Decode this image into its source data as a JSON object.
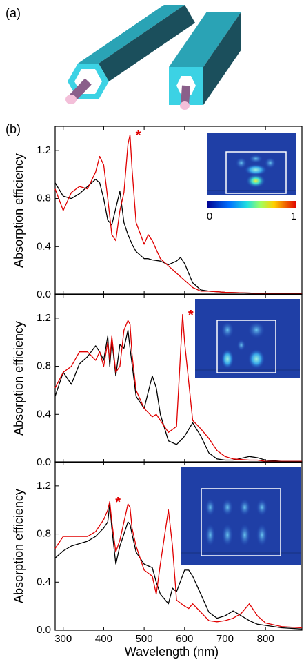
{
  "figure": {
    "panel_a_label": "(a)",
    "panel_b_label": "(b)"
  },
  "chart_data": [
    {
      "type": "line",
      "y_label": "Absorption efficiency",
      "annotation": "*",
      "colorbar_labels": [
        "0",
        "1"
      ],
      "x": [
        280,
        300,
        320,
        340,
        360,
        380,
        390,
        400,
        410,
        420,
        430,
        440,
        450,
        460,
        465,
        470,
        480,
        500,
        510,
        520,
        540,
        560,
        580,
        590,
        600,
        620,
        640,
        660,
        700,
        800,
        890
      ],
      "series": [
        {
          "color": "#000000",
          "values": [
            0.93,
            0.82,
            0.8,
            0.84,
            0.9,
            0.96,
            0.93,
            0.8,
            0.62,
            0.58,
            0.72,
            0.86,
            0.6,
            0.5,
            0.46,
            0.42,
            0.36,
            0.3,
            0.3,
            0.29,
            0.28,
            0.25,
            0.28,
            0.31,
            0.26,
            0.1,
            0.04,
            0.03,
            0.02,
            0.01,
            0.01
          ]
        },
        {
          "color": "#e00000",
          "values": [
            0.88,
            0.7,
            0.85,
            0.9,
            0.88,
            1.02,
            1.15,
            1.08,
            0.8,
            0.5,
            0.45,
            0.7,
            0.85,
            1.25,
            1.33,
            1.05,
            0.6,
            0.42,
            0.5,
            0.45,
            0.3,
            0.24,
            0.18,
            0.15,
            0.12,
            0.06,
            0.03,
            0.03,
            0.02,
            0.01,
            0.01
          ]
        }
      ],
      "xlim": [
        280,
        890
      ],
      "xticks": [
        300,
        400,
        500,
        600,
        700,
        800
      ],
      "ylim": [
        0,
        1.4
      ],
      "yticks": [
        {
          "value": 0,
          "label": "0.0"
        },
        0.4,
        0.8,
        1.2
      ]
    },
    {
      "type": "line",
      "y_label": "Absorption efficiency",
      "annotation": "*",
      "x": [
        280,
        300,
        320,
        340,
        360,
        380,
        390,
        400,
        410,
        415,
        420,
        430,
        440,
        450,
        460,
        465,
        470,
        480,
        500,
        520,
        530,
        540,
        560,
        580,
        595,
        600,
        620,
        640,
        660,
        680,
        700,
        720,
        760,
        780,
        800,
        840,
        890
      ],
      "series": [
        {
          "color": "#000000",
          "values": [
            0.55,
            0.75,
            0.65,
            0.82,
            0.88,
            0.97,
            0.92,
            0.85,
            1.05,
            0.8,
            1.02,
            0.72,
            0.98,
            0.95,
            1.1,
            0.95,
            0.82,
            0.55,
            0.45,
            0.72,
            0.62,
            0.4,
            0.18,
            0.15,
            0.2,
            0.22,
            0.33,
            0.22,
            0.08,
            0.03,
            0.02,
            0.02,
            0.05,
            0.04,
            0.02,
            0.01,
            0.01
          ]
        },
        {
          "color": "#e00000",
          "values": [
            0.62,
            0.75,
            0.8,
            0.92,
            0.92,
            0.85,
            0.92,
            0.8,
            1.0,
            0.85,
            1.05,
            0.75,
            0.8,
            1.1,
            1.18,
            1.15,
            0.9,
            0.6,
            0.45,
            0.38,
            0.4,
            0.35,
            0.25,
            0.3,
            1.23,
            1.0,
            0.35,
            0.28,
            0.2,
            0.1,
            0.05,
            0.03,
            0.02,
            0.02,
            0.01,
            0.01,
            0.01
          ]
        }
      ],
      "xlim": [
        280,
        890
      ],
      "xticks": [
        300,
        400,
        500,
        600,
        700,
        800
      ],
      "ylim": [
        0,
        1.4
      ],
      "yticks": [
        {
          "value": 0,
          "label": "0.0"
        },
        0.4,
        0.8,
        1.2
      ]
    },
    {
      "type": "line",
      "y_label": "Absorption efficiency",
      "annotation": "*",
      "x_label": "Wavelength (nm)",
      "x": [
        280,
        300,
        320,
        340,
        360,
        380,
        400,
        410,
        415,
        420,
        430,
        440,
        450,
        460,
        465,
        470,
        480,
        500,
        520,
        530,
        540,
        560,
        570,
        580,
        600,
        610,
        620,
        640,
        660,
        680,
        700,
        720,
        740,
        760,
        780,
        800,
        840,
        890
      ],
      "series": [
        {
          "color": "#000000",
          "values": [
            0.6,
            0.66,
            0.7,
            0.72,
            0.74,
            0.78,
            0.85,
            0.9,
            1.05,
            0.85,
            0.55,
            0.7,
            0.8,
            0.9,
            0.88,
            0.8,
            0.65,
            0.55,
            0.52,
            0.4,
            0.3,
            0.22,
            0.35,
            0.32,
            0.5,
            0.5,
            0.45,
            0.3,
            0.15,
            0.1,
            0.12,
            0.16,
            0.12,
            0.08,
            0.05,
            0.04,
            0.02,
            0.01
          ]
        },
        {
          "color": "#e00000",
          "values": [
            0.68,
            0.78,
            0.78,
            0.78,
            0.78,
            0.82,
            0.92,
            1.0,
            1.07,
            0.9,
            0.65,
            0.75,
            0.9,
            1.05,
            1.02,
            0.85,
            0.7,
            0.5,
            0.45,
            0.3,
            0.55,
            1.0,
            0.7,
            0.25,
            0.2,
            0.18,
            0.22,
            0.15,
            0.08,
            0.07,
            0.08,
            0.1,
            0.14,
            0.22,
            0.12,
            0.06,
            0.03,
            0.02
          ]
        }
      ],
      "xlim": [
        280,
        890
      ],
      "xticks": [
        300,
        400,
        500,
        600,
        700,
        800
      ],
      "ylim": [
        0,
        1.4
      ],
      "yticks": [
        {
          "value": 0,
          "label": "0.0"
        },
        0.4,
        0.8,
        1.2
      ]
    }
  ]
}
